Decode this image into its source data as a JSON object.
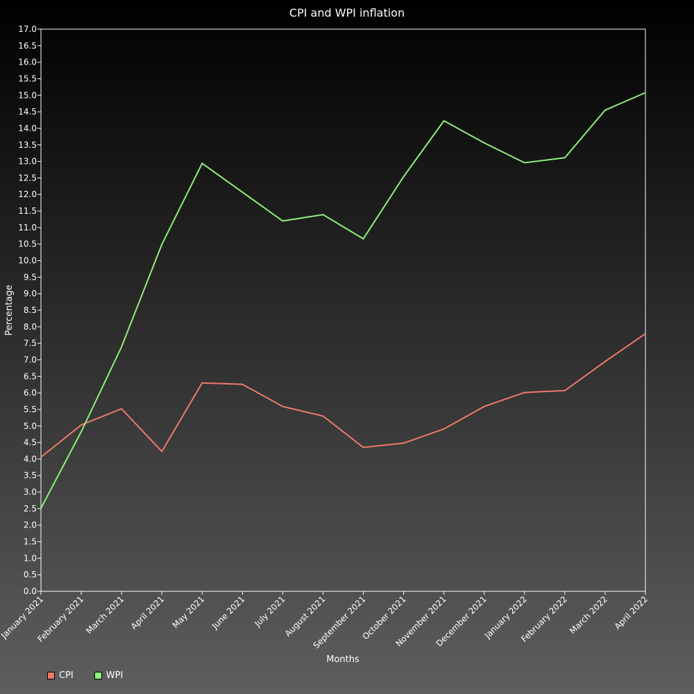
{
  "chart_data": {
    "type": "line",
    "title": "CPI and WPI inflation",
    "xlabel": "Months",
    "ylabel": "Percentage",
    "ylim": [
      0,
      17
    ],
    "ytick_step": 0.5,
    "grid": false,
    "legend_position": "bottom-left",
    "categories": [
      "January 2021",
      "February 2021",
      "March 2021",
      "April 2021",
      "May 2021",
      "June 2021",
      "July 2021",
      "August 2021",
      "September 2021",
      "October 2021",
      "November 2021",
      "December 2021",
      "January 2022",
      "February 2022",
      "March 2022",
      "April 2022"
    ],
    "series": [
      {
        "name": "CPI",
        "color": "#f07a6a",
        "values": [
          4.06,
          5.03,
          5.52,
          4.23,
          6.3,
          6.26,
          5.59,
          5.3,
          4.35,
          4.48,
          4.91,
          5.59,
          6.01,
          6.07,
          6.95,
          7.79
        ]
      },
      {
        "name": "WPI",
        "color": "#8ef07a",
        "values": [
          2.51,
          4.83,
          7.39,
          10.49,
          12.94,
          12.07,
          11.2,
          11.39,
          10.66,
          12.54,
          14.23,
          13.56,
          12.96,
          13.11,
          14.55,
          15.08
        ]
      }
    ]
  }
}
